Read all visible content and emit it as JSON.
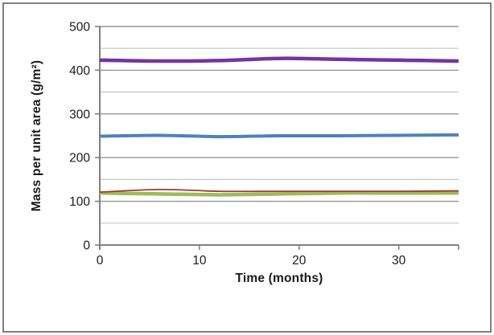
{
  "window": {
    "background": "#ffffff",
    "frame_border_color": "#7f7f7f"
  },
  "chart_data": {
    "type": "line",
    "title": "",
    "xlabel": "Time (months)",
    "ylabel": "Mass per unit area (g/m²)",
    "xlim": [
      0,
      36
    ],
    "ylim": [
      0,
      500
    ],
    "x": [
      0,
      6,
      12,
      18,
      24,
      30,
      36
    ],
    "series": [
      {
        "name": "series-purple",
        "color": "#7434A4",
        "stroke_width": 4.5,
        "values": [
          423,
          421,
          422,
          427,
          425,
          423,
          421
        ]
      },
      {
        "name": "series-blue",
        "color": "#4F81BD",
        "stroke_width": 4.0,
        "values": [
          249,
          251,
          248,
          250,
          250,
          251,
          252
        ]
      },
      {
        "name": "series-green",
        "color": "#9BBB59",
        "stroke_width": 4.5,
        "values": [
          119,
          117,
          115,
          117,
          119,
          119,
          119
        ]
      },
      {
        "name": "series-dark-red",
        "color": "#9E3A36",
        "stroke_width": 1.8,
        "values": [
          121,
          127,
          123,
          123,
          123,
          123,
          124
        ]
      }
    ],
    "x_tick_labels": [
      0,
      10,
      20,
      30
    ],
    "x_tick_marks": [
      10,
      20,
      30,
      36
    ],
    "y_tick_labels": [
      0,
      100,
      200,
      300,
      400,
      500
    ],
    "y_minor_step": 50,
    "grid": "horizontal",
    "legend": "none",
    "styles": {
      "axis_color": "#808080",
      "major_grid_color": "#969696",
      "minor_grid_color": "#c6c6c6",
      "tick_label_color": "#1a1a1a",
      "tick_label_size": 15.5
    }
  }
}
